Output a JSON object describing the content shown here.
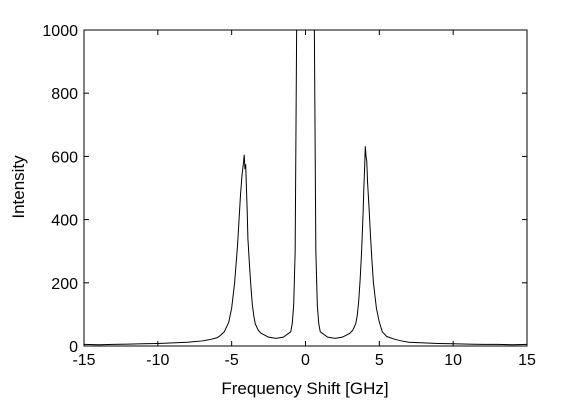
{
  "chart_data": {
    "type": "line",
    "title": "",
    "xlabel": "Frequency Shift [GHz]",
    "ylabel": "Intensity",
    "xlim": [
      -15,
      15
    ],
    "ylim": [
      0,
      1000
    ],
    "xticks": [
      -15,
      -10,
      -5,
      0,
      5,
      10,
      15
    ],
    "yticks": [
      0,
      200,
      400,
      600,
      800,
      1000
    ],
    "x_tick_labels": [
      "-15",
      "-10",
      "-5",
      "0",
      "5",
      "10",
      "15"
    ],
    "y_tick_labels": [
      "0",
      "200",
      "400",
      "600",
      "800",
      "1000"
    ],
    "grid": false,
    "legend": "none",
    "line_color": "#000000",
    "series": [
      {
        "x": [
          -15,
          -14,
          -13,
          -12,
          -11,
          -10,
          -9,
          -8,
          -7,
          -6.5,
          -6,
          -5.8,
          -5.5,
          -5.2,
          -5.0,
          -4.8,
          -4.6,
          -4.5,
          -4.4,
          -4.3,
          -4.2,
          -4.15,
          -4.1,
          -4.05,
          -4.0,
          -3.95,
          -3.9,
          -3.8,
          -3.7,
          -3.6,
          -3.5,
          -3.4,
          -3.2,
          -3.0,
          -2.5,
          -2.0,
          -1.5,
          -1.0,
          -0.9,
          -0.8,
          -0.7,
          -0.6,
          -0.5,
          -0.4,
          -0.3,
          -0.2,
          0.0,
          0.2,
          0.3,
          0.4,
          0.5,
          0.6,
          0.7,
          0.8,
          0.9,
          1.0,
          1.5,
          2.0,
          2.5,
          3.0,
          3.2,
          3.4,
          3.5,
          3.6,
          3.7,
          3.8,
          3.9,
          3.95,
          4.0,
          4.05,
          4.1,
          4.15,
          4.2,
          4.3,
          4.4,
          4.5,
          4.6,
          4.8,
          5.0,
          5.2,
          5.5,
          6,
          6.5,
          7,
          8,
          9,
          10,
          11,
          12,
          13,
          14,
          15
        ],
        "y": [
          5,
          4,
          5,
          6,
          7,
          8,
          10,
          12,
          16,
          20,
          26,
          32,
          45,
          75,
          120,
          200,
          320,
          400,
          480,
          540,
          580,
          605,
          560,
          575,
          500,
          430,
          340,
          260,
          190,
          130,
          95,
          70,
          50,
          40,
          28,
          24,
          28,
          45,
          70,
          130,
          300,
          1000,
          1000,
          1000,
          1000,
          1000,
          1000,
          1000,
          1000,
          1000,
          1000,
          1000,
          300,
          130,
          70,
          45,
          28,
          24,
          28,
          40,
          50,
          70,
          95,
          140,
          210,
          300,
          420,
          500,
          560,
          632,
          600,
          585,
          520,
          440,
          350,
          270,
          200,
          120,
          75,
          45,
          30,
          22,
          16,
          12,
          10,
          8,
          7,
          6,
          5,
          5,
          4,
          5
        ]
      }
    ]
  }
}
